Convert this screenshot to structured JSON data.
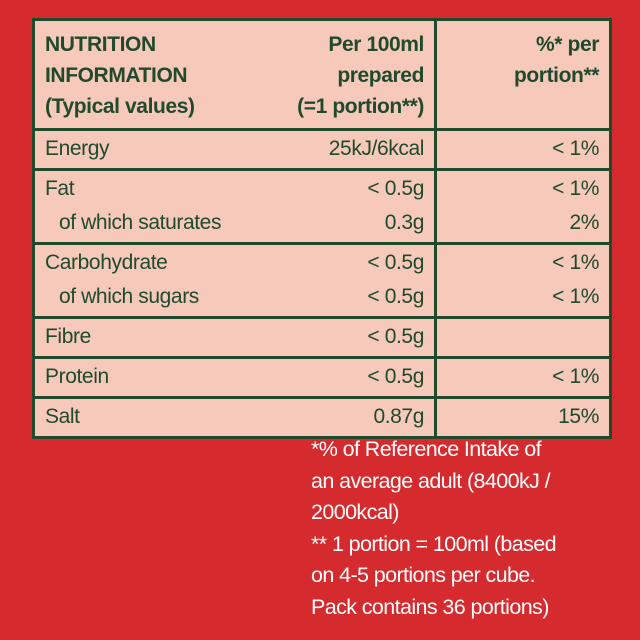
{
  "header": {
    "title": [
      "NUTRITION",
      "INFORMATION",
      "(Typical values)"
    ],
    "per_100ml": [
      "Per 100ml",
      "prepared",
      "(=1 portion**)"
    ],
    "percent": [
      "%* per",
      "portion**"
    ]
  },
  "rows": [
    [
      {
        "label": "Energy",
        "per_100ml": "25kJ/6kcal",
        "percent": "< 1%"
      }
    ],
    [
      {
        "label": "Fat",
        "per_100ml": "< 0.5g",
        "percent": "< 1%"
      },
      {
        "label": "of which saturates",
        "per_100ml": "0.3g",
        "percent": "2%"
      }
    ],
    [
      {
        "label": "Carbohydrate",
        "per_100ml": "< 0.5g",
        "percent": "< 1%"
      },
      {
        "label": "of which sugars",
        "per_100ml": "< 0.5g",
        "percent": "< 1%"
      }
    ],
    [
      {
        "label": "Fibre",
        "per_100ml": "< 0.5g"
      }
    ],
    [
      {
        "label": "Protein",
        "per_100ml": "< 0.5g",
        "percent": "< 1%"
      }
    ],
    [
      {
        "label": "Salt",
        "per_100ml": "0.87g",
        "percent": "15%"
      }
    ]
  ],
  "footnotes": [
    "*% of Reference Intake of",
    "an average adult (8400kJ /",
    "2000kcal)",
    "** 1 portion = 100ml (based",
    "on 4-5 portions per cube.",
    "Pack contains 36 portions)"
  ]
}
